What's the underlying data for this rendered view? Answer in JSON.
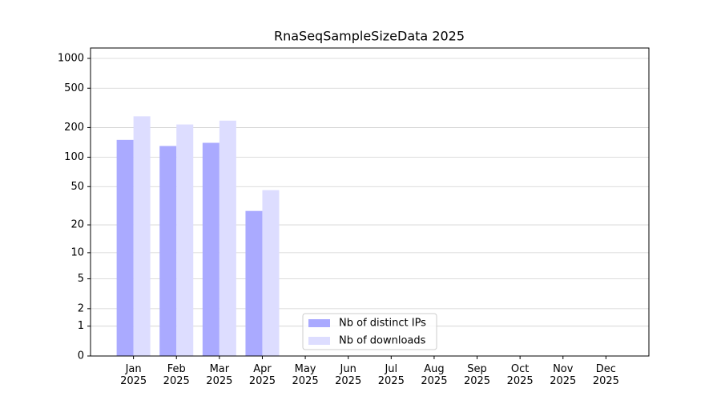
{
  "chart_data": {
    "type": "bar",
    "title": "RnaSeqSampleSizeData 2025",
    "categories": [
      "Jan 2025",
      "Feb 2025",
      "Mar 2025",
      "Apr 2025",
      "May 2025",
      "Jun 2025",
      "Jul 2025",
      "Aug 2025",
      "Sep 2025",
      "Oct 2025",
      "Nov 2025",
      "Dec 2025"
    ],
    "series": [
      {
        "name": "Nb of distinct IPs",
        "color": "#aaaaff",
        "values": [
          150,
          130,
          140,
          28,
          null,
          null,
          null,
          null,
          null,
          null,
          null,
          null
        ]
      },
      {
        "name": "Nb of downloads",
        "color": "#ddddff",
        "values": [
          260,
          215,
          235,
          46,
          null,
          null,
          null,
          null,
          null,
          null,
          null,
          null
        ]
      }
    ],
    "y_scale": "log1p",
    "ylim": [
      0,
      1273
    ],
    "yticks": [
      0,
      1,
      2,
      5,
      10,
      20,
      50,
      100,
      200,
      500,
      1000
    ],
    "grid": true,
    "legend": "lower center"
  }
}
